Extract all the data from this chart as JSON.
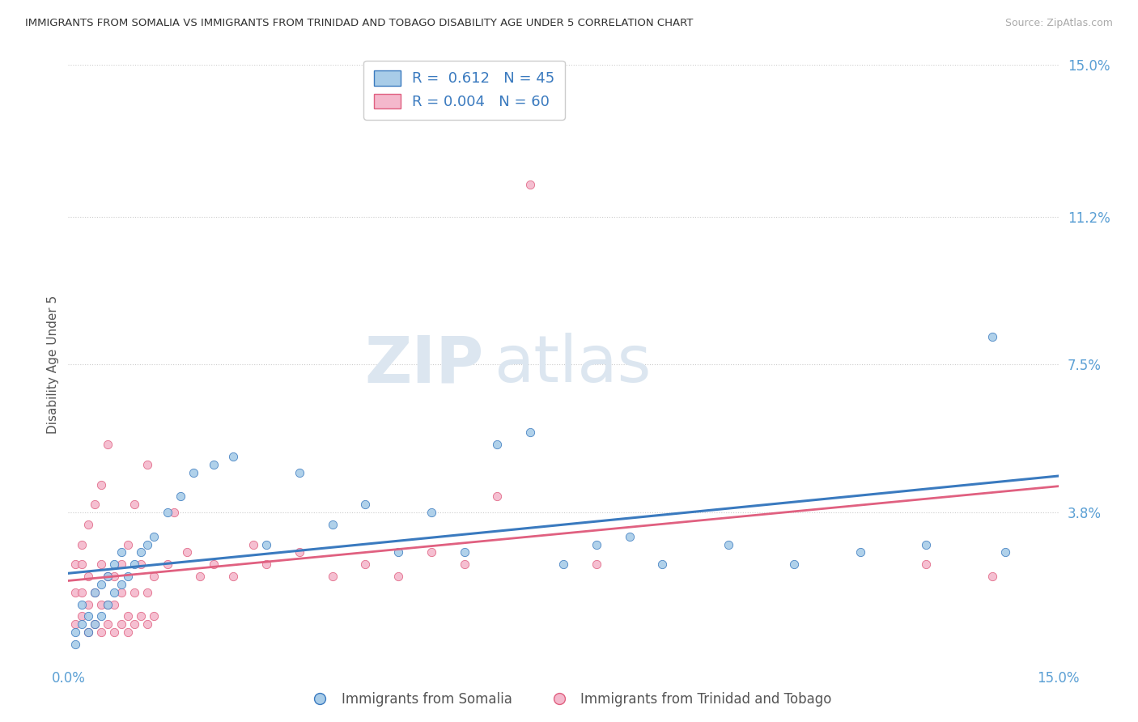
{
  "title": "IMMIGRANTS FROM SOMALIA VS IMMIGRANTS FROM TRINIDAD AND TOBAGO DISABILITY AGE UNDER 5 CORRELATION CHART",
  "source": "Source: ZipAtlas.com",
  "ylabel": "Disability Age Under 5",
  "xlim": [
    0.0,
    0.15
  ],
  "ylim": [
    0.0,
    0.15
  ],
  "xtick_labels": [
    "0.0%",
    "15.0%"
  ],
  "xtick_vals": [
    0.0,
    0.15
  ],
  "ytick_labels": [
    "15.0%",
    "11.2%",
    "7.5%",
    "3.8%"
  ],
  "ytick_vals": [
    0.15,
    0.112,
    0.075,
    0.038
  ],
  "somalia_R": "0.612",
  "somalia_N": "45",
  "trinidad_R": "0.004",
  "trinidad_N": "60",
  "somalia_color": "#a8cce8",
  "trinidad_color": "#f4b8cc",
  "somalia_trend_color": "#3a7abf",
  "trinidad_trend_color": "#e06080",
  "axis_color": "#5a9fd4",
  "background_color": "#ffffff",
  "somalia_x": [
    0.001,
    0.001,
    0.002,
    0.002,
    0.003,
    0.003,
    0.004,
    0.004,
    0.005,
    0.005,
    0.006,
    0.006,
    0.007,
    0.007,
    0.008,
    0.008,
    0.009,
    0.01,
    0.011,
    0.012,
    0.013,
    0.015,
    0.017,
    0.019,
    0.022,
    0.025,
    0.03,
    0.035,
    0.04,
    0.045,
    0.05,
    0.055,
    0.06,
    0.065,
    0.07,
    0.075,
    0.08,
    0.085,
    0.09,
    0.1,
    0.11,
    0.12,
    0.13,
    0.14,
    0.142
  ],
  "somalia_y": [
    0.005,
    0.008,
    0.01,
    0.015,
    0.008,
    0.012,
    0.01,
    0.018,
    0.012,
    0.02,
    0.015,
    0.022,
    0.018,
    0.025,
    0.02,
    0.028,
    0.022,
    0.025,
    0.028,
    0.03,
    0.032,
    0.038,
    0.042,
    0.048,
    0.05,
    0.052,
    0.03,
    0.048,
    0.035,
    0.04,
    0.028,
    0.038,
    0.028,
    0.055,
    0.058,
    0.025,
    0.03,
    0.032,
    0.025,
    0.03,
    0.025,
    0.028,
    0.03,
    0.082,
    0.028
  ],
  "trinidad_x": [
    0.001,
    0.001,
    0.001,
    0.002,
    0.002,
    0.002,
    0.002,
    0.003,
    0.003,
    0.003,
    0.003,
    0.004,
    0.004,
    0.004,
    0.005,
    0.005,
    0.005,
    0.005,
    0.006,
    0.006,
    0.006,
    0.006,
    0.007,
    0.007,
    0.007,
    0.008,
    0.008,
    0.008,
    0.009,
    0.009,
    0.009,
    0.01,
    0.01,
    0.01,
    0.011,
    0.011,
    0.012,
    0.012,
    0.012,
    0.013,
    0.013,
    0.015,
    0.016,
    0.018,
    0.02,
    0.022,
    0.025,
    0.028,
    0.03,
    0.035,
    0.04,
    0.045,
    0.05,
    0.055,
    0.06,
    0.065,
    0.07,
    0.08,
    0.13,
    0.14
  ],
  "trinidad_y": [
    0.01,
    0.018,
    0.025,
    0.012,
    0.018,
    0.025,
    0.03,
    0.008,
    0.015,
    0.022,
    0.035,
    0.01,
    0.018,
    0.04,
    0.008,
    0.015,
    0.025,
    0.045,
    0.01,
    0.015,
    0.022,
    0.055,
    0.008,
    0.015,
    0.022,
    0.01,
    0.018,
    0.025,
    0.008,
    0.012,
    0.03,
    0.01,
    0.018,
    0.04,
    0.012,
    0.025,
    0.01,
    0.018,
    0.05,
    0.012,
    0.022,
    0.025,
    0.038,
    0.028,
    0.022,
    0.025,
    0.022,
    0.03,
    0.025,
    0.028,
    0.022,
    0.025,
    0.022,
    0.028,
    0.025,
    0.042,
    0.12,
    0.025,
    0.025,
    0.022
  ]
}
